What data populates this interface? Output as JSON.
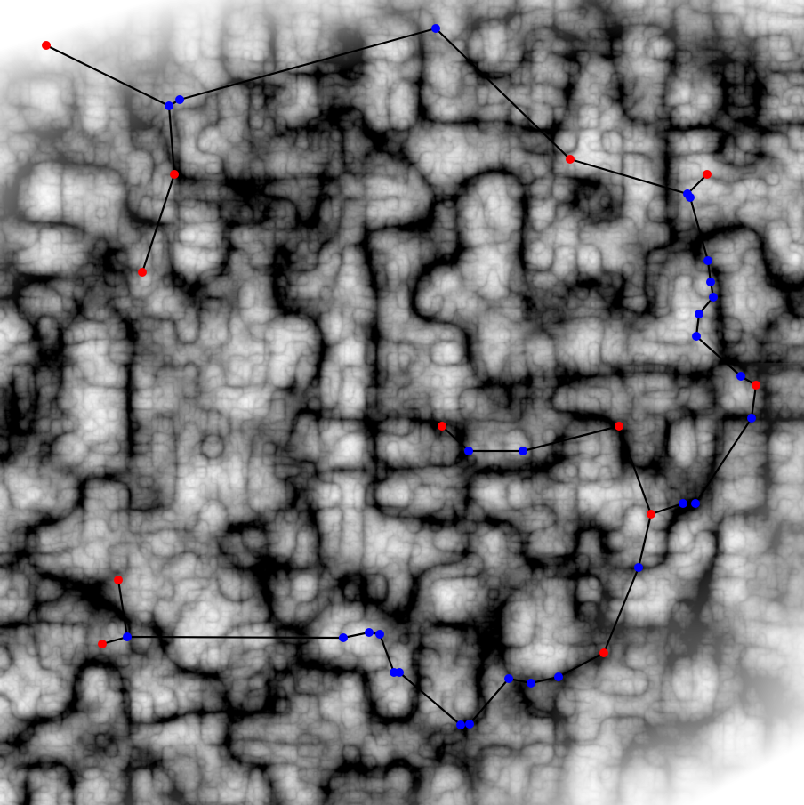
{
  "map": {
    "description_free": true,
    "colors": {
      "background": "#ffffff",
      "terrain_dark": "#000000",
      "terrain_light": "#ffffff",
      "path_line": "#000000",
      "endpoint_node": "#ff0000",
      "waypoint_node": "#0000ff"
    },
    "node_kinds": [
      "endpoint",
      "waypoint"
    ]
  }
}
